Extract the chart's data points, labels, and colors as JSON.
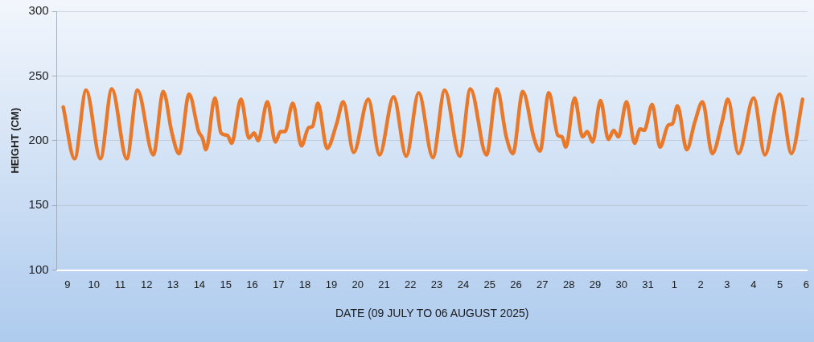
{
  "chart_data": {
    "type": "line",
    "xlabel": "DATE (09 JULY TO 06 AUGUST 2025)",
    "ylabel": "HEIGHT (CM)",
    "x": [
      "2025-07-08T20:10",
      "2025-07-09T06:30",
      "2025-07-09T17:00",
      "2025-07-10T06:00",
      "2025-07-10T16:20",
      "2025-07-11T06:00",
      "2025-07-11T15:40",
      "2025-07-12T06:10",
      "2025-07-12T15:10",
      "2025-07-12T23:00",
      "2025-07-13T05:30",
      "2025-07-13T14:40",
      "2025-07-13T23:20",
      "2025-07-14T02:50",
      "2025-07-14T06:00",
      "2025-07-14T14:10",
      "2025-07-14T19:40",
      "2025-07-15T01:40",
      "2025-07-15T05:20",
      "2025-07-15T13:50",
      "2025-07-15T21:10",
      "2025-07-16T01:50",
      "2025-07-16T05:30",
      "2025-07-16T13:50",
      "2025-07-16T21:10",
      "2025-07-17T01:50",
      "2025-07-17T05:50",
      "2025-07-17T13:00",
      "2025-07-17T20:50",
      "2025-07-18T03:20",
      "2025-07-18T07:00",
      "2025-07-18T11:50",
      "2025-07-18T20:10",
      "2025-07-19T04:50",
      "2025-07-19T10:50",
      "2025-07-19T20:20",
      "2025-07-20T09:40",
      "2025-07-20T19:50",
      "2025-07-21T08:40",
      "2025-07-21T20:10",
      "2025-07-22T07:30",
      "2025-07-22T20:20",
      "2025-07-23T07:10",
      "2025-07-23T20:50",
      "2025-07-24T06:30",
      "2025-07-24T21:10",
      "2025-07-25T06:40",
      "2025-07-25T15:10",
      "2025-07-25T21:10",
      "2025-07-26T06:10",
      "2025-07-26T16:20",
      "2025-07-26T21:50",
      "2025-07-27T05:50",
      "2025-07-27T14:10",
      "2025-07-27T17:50",
      "2025-07-27T21:20",
      "2025-07-28T05:20",
      "2025-07-28T12:30",
      "2025-07-28T16:50",
      "2025-07-28T21:40",
      "2025-07-29T04:50",
      "2025-07-29T12:00",
      "2025-07-29T16:50",
      "2025-07-29T21:10",
      "2025-07-30T04:30",
      "2025-07-30T11:50",
      "2025-07-30T17:00",
      "2025-07-30T20:40",
      "2025-07-31T03:50",
      "2025-07-31T11:00",
      "2025-07-31T18:30",
      "2025-07-31T22:20",
      "2025-08-01T02:50",
      "2025-08-01T11:20",
      "2025-08-01T18:30",
      "2025-08-02T01:40",
      "2025-08-02T10:30",
      "2025-08-02T19:50",
      "2025-08-03T00:40",
      "2025-08-03T10:20",
      "2025-08-04T00:10",
      "2025-08-04T10:20",
      "2025-08-04T23:50",
      "2025-08-05T10:30",
      "2025-08-05T20:40"
    ],
    "series": [
      {
        "color": "#e8782a",
        "values": [
          226,
          186,
          239,
          186,
          240,
          186,
          239,
          189,
          238,
          206,
          190,
          236,
          207,
          202,
          193,
          233,
          206,
          204,
          198,
          232,
          202,
          206,
          200,
          230,
          199,
          207,
          207,
          229,
          196,
          210,
          211,
          229,
          194,
          213,
          230,
          191,
          232,
          189,
          234,
          188,
          237,
          187,
          239,
          188,
          240,
          189,
          240,
          203,
          190,
          238,
          202,
          192,
          237,
          204,
          203,
          195,
          233,
          203,
          207,
          199,
          231,
          201,
          208,
          203,
          230,
          198,
          209,
          208,
          228,
          195,
          212,
          213,
          227,
          193,
          214,
          230,
          190,
          216,
          232,
          190,
          233,
          189,
          236,
          190,
          232
        ]
      }
    ],
    "xlim": [
      "2025-07-08T14:20",
      "2025-08-06T01:00"
    ],
    "ylim": [
      100,
      300
    ],
    "yticks": [
      100,
      150,
      200,
      250,
      300
    ],
    "xticks": [
      {
        "value": "2025-07-09",
        "label": "9"
      },
      {
        "value": "2025-07-10",
        "label": "10"
      },
      {
        "value": "2025-07-11",
        "label": "11"
      },
      {
        "value": "2025-07-12",
        "label": "12"
      },
      {
        "value": "2025-07-13",
        "label": "13"
      },
      {
        "value": "2025-07-14",
        "label": "14"
      },
      {
        "value": "2025-07-15",
        "label": "15"
      },
      {
        "value": "2025-07-16",
        "label": "16"
      },
      {
        "value": "2025-07-17",
        "label": "17"
      },
      {
        "value": "2025-07-18",
        "label": "18"
      },
      {
        "value": "2025-07-19",
        "label": "19"
      },
      {
        "value": "2025-07-20",
        "label": "20"
      },
      {
        "value": "2025-07-21",
        "label": "21"
      },
      {
        "value": "2025-07-22",
        "label": "22"
      },
      {
        "value": "2025-07-23",
        "label": "23"
      },
      {
        "value": "2025-07-24",
        "label": "24"
      },
      {
        "value": "2025-07-25",
        "label": "25"
      },
      {
        "value": "2025-07-26",
        "label": "26"
      },
      {
        "value": "2025-07-27",
        "label": "27"
      },
      {
        "value": "2025-07-28",
        "label": "28"
      },
      {
        "value": "2025-07-29",
        "label": "29"
      },
      {
        "value": "2025-07-30",
        "label": "30"
      },
      {
        "value": "2025-07-31",
        "label": "31"
      },
      {
        "value": "2025-08-01",
        "label": "1"
      },
      {
        "value": "2025-08-02",
        "label": "2"
      },
      {
        "value": "2025-08-03",
        "label": "3"
      },
      {
        "value": "2025-08-04",
        "label": "4"
      },
      {
        "value": "2025-08-05",
        "label": "5"
      },
      {
        "value": "2025-08-06",
        "label": "6"
      }
    ],
    "grid": "y",
    "legend": false,
    "marker": "none",
    "line_style": "solid"
  }
}
